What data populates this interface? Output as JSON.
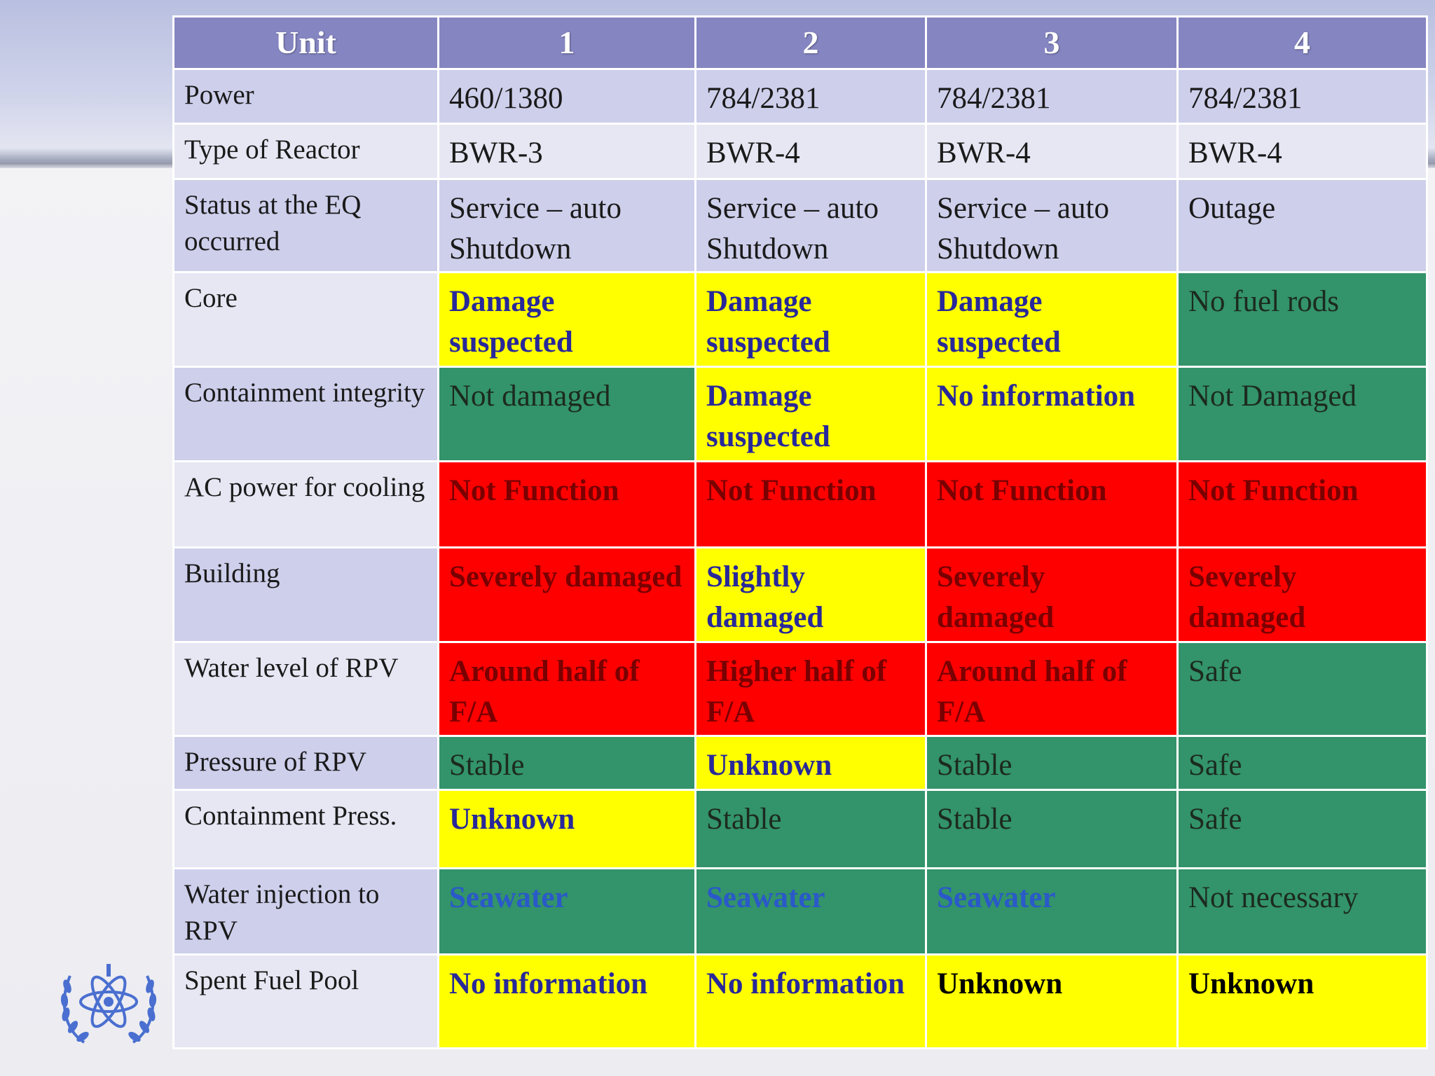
{
  "table": {
    "header": [
      "Unit",
      "1",
      "2",
      "3",
      "4"
    ],
    "rows": [
      {
        "label": "Power",
        "cells": [
          "460/1380",
          "784/2381",
          "784/2381",
          "784/2381"
        ]
      },
      {
        "label": "Type of Reactor",
        "cells": [
          "BWR-3",
          "BWR-4",
          "BWR-4",
          "BWR-4"
        ]
      },
      {
        "label": "Status at the EQ occurred",
        "cells": [
          "Service – auto Shutdown",
          "Service – auto Shutdown",
          "Service – auto Shutdown",
          "Outage"
        ]
      },
      {
        "label": "Core",
        "cells": [
          "Damage suspected",
          "Damage suspected",
          "Damage suspected",
          "No fuel rods"
        ]
      },
      {
        "label": "Containment integrity",
        "cells": [
          "Not damaged",
          "Damage suspected",
          "No information",
          "Not Damaged"
        ]
      },
      {
        "label": "AC power for cooling",
        "cells": [
          "Not Function",
          "Not Function",
          "Not Function",
          "Not Function"
        ]
      },
      {
        "label": "Building",
        "cells": [
          "Severely damaged",
          "Slightly damaged",
          "Severely damaged",
          "Severely damaged"
        ]
      },
      {
        "label": "Water level of RPV",
        "cells": [
          "Around half of F/A",
          "Higher half of F/A",
          "Around half of F/A",
          "Safe"
        ]
      },
      {
        "label": "Pressure of RPV",
        "cells": [
          "Stable",
          "Unknown",
          "Stable",
          "Safe"
        ]
      },
      {
        "label": "Containment Press.",
        "cells": [
          "Unknown",
          "Stable",
          "Stable",
          "Safe"
        ]
      },
      {
        "label": "Water injection to RPV",
        "cells": [
          "Seawater",
          "Seawater",
          "Seawater",
          "Not necessary"
        ]
      },
      {
        "label": "Spent Fuel Pool",
        "cells": [
          "No information",
          "No information",
          "Unknown",
          "Unknown"
        ]
      }
    ]
  },
  "colors": {
    "header": "#8585c2",
    "green": "#33936a",
    "yellow": "#ffff00",
    "red": "#ff0000",
    "label_odd": "#cdcfeb",
    "label_even": "#e6e7f3"
  },
  "logo": {
    "icon": "iaea-emblem-icon"
  }
}
